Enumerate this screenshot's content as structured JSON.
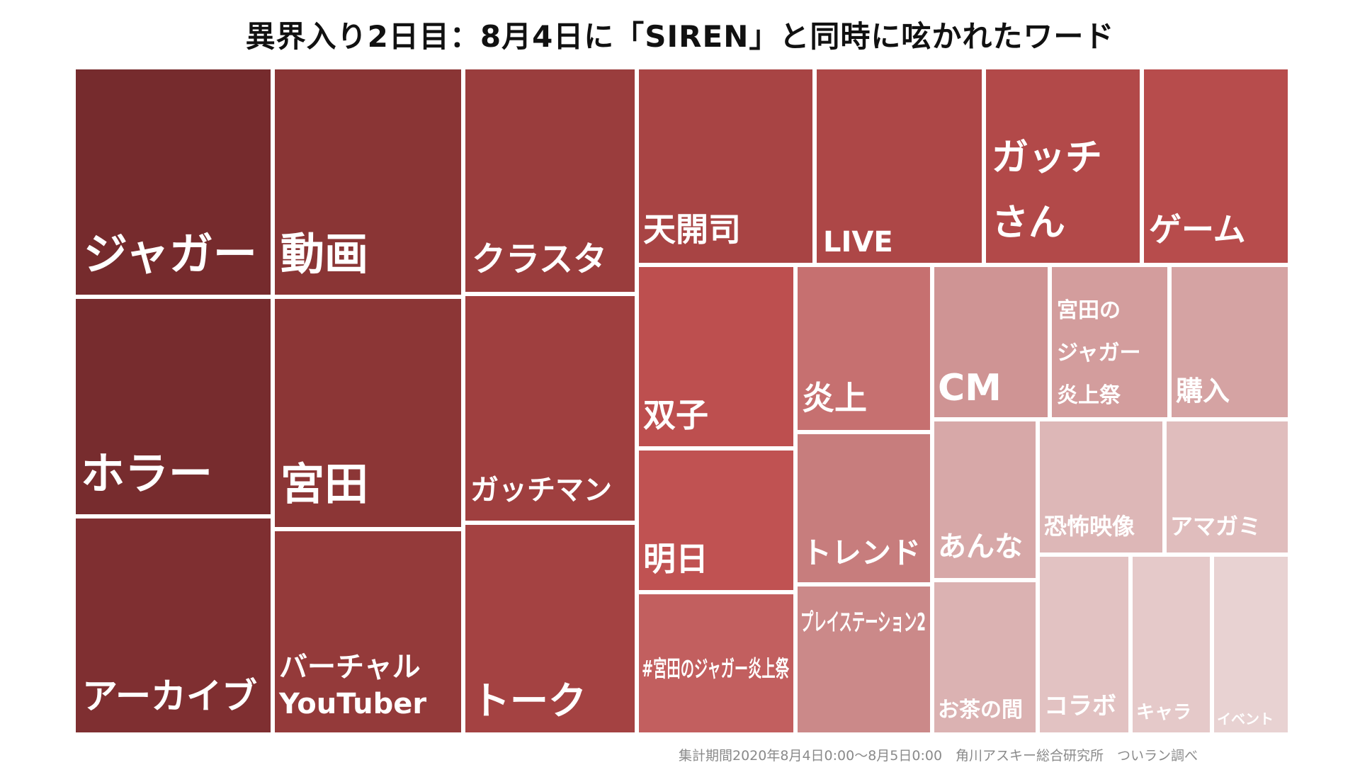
{
  "chart_data": {
    "type": "treemap",
    "title": "異界入り2日目：8月4日に「SIREN」と同時に呟かれたワード",
    "source": "集計期間2020年8月4日0:00〜8月5日0:00　角川アスキー総合研究所　ついラン調べ",
    "items": [
      {
        "label": "ジャガー",
        "color": "#762b2d"
      },
      {
        "label": "ホラー",
        "color": "#772c2e"
      },
      {
        "label": "アーカイブ",
        "color": "#7f2f31"
      },
      {
        "label": "動画",
        "color": "#8a3535"
      },
      {
        "label": "宮田",
        "color": "#8c3636"
      },
      {
        "label": "バーチャル YouTuber",
        "color": "#943a3a"
      },
      {
        "label": "クラスタ",
        "color": "#9a3d3d"
      },
      {
        "label": "ガッチマン",
        "color": "#9f3f3f"
      },
      {
        "label": "トーク",
        "color": "#a44242"
      },
      {
        "label": "天開司",
        "color": "#a84444"
      },
      {
        "label": "LIVE",
        "color": "#ad4747"
      },
      {
        "label": "ガッチ さん",
        "color": "#b24949"
      },
      {
        "label": "ゲーム",
        "color": "#b74c4c"
      },
      {
        "label": "双子",
        "color": "#bd4f4f"
      },
      {
        "label": "明日",
        "color": "#c05252"
      },
      {
        "label": "#宮田のジャガー炎上祭",
        "color": "#c25f5f"
      },
      {
        "label": "炎上",
        "color": "#c67070"
      },
      {
        "label": "トレンド",
        "color": "#c77d7d"
      },
      {
        "label": "プレイステーション2",
        "color": "#cb8989"
      },
      {
        "label": "CM",
        "color": "#cf9494"
      },
      {
        "label": "宮田の ジャガー 炎上祭",
        "color": "#d39d9d"
      },
      {
        "label": "購入",
        "color": "#d5a3a3"
      },
      {
        "label": "あんな",
        "color": "#d7a8a8"
      },
      {
        "label": "お茶の間",
        "color": "#dbb2b2"
      },
      {
        "label": "恐怖映像",
        "color": "#ddb7b7"
      },
      {
        "label": "アマガミ",
        "color": "#e0bdbd"
      },
      {
        "label": "コラボ",
        "color": "#e2c2c2"
      },
      {
        "label": "キャラ",
        "color": "#e5c9c9"
      },
      {
        "label": "イベント",
        "color": "#e8d2d2"
      }
    ]
  }
}
